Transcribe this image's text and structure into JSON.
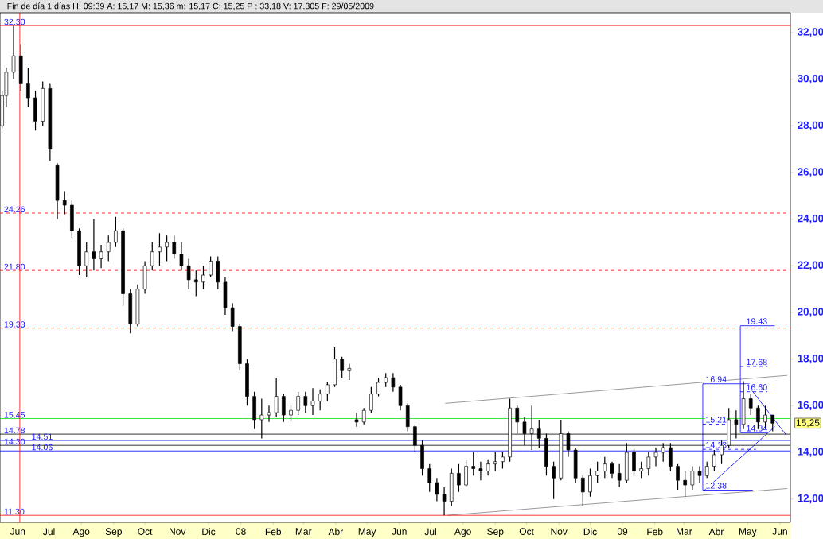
{
  "chart_data": {
    "type": "candlestick",
    "title": "Fin de día 1 días H: 09:39 A: 15,17 M: 15,36 m: 15,17 C: 15,25 P : 33,18 V: 17.305 F: 29/05/2009",
    "color": "#000000",
    "x": [
      "2007-05-17",
      "2007-05-21",
      "2007-05-28",
      "2007-06-04",
      "2007-06-11",
      "2007-06-18",
      "2007-06-25",
      "2007-07-02",
      "2007-07-09",
      "2007-07-16",
      "2007-07-23",
      "2007-07-30",
      "2007-08-06",
      "2007-08-13",
      "2007-08-20",
      "2007-08-27",
      "2007-09-03",
      "2007-09-10",
      "2007-09-17",
      "2007-09-24",
      "2007-10-01",
      "2007-10-08",
      "2007-10-15",
      "2007-10-22",
      "2007-10-29",
      "2007-11-05",
      "2007-11-12",
      "2007-11-19",
      "2007-11-26",
      "2007-12-03",
      "2007-12-10",
      "2007-12-17",
      "2007-12-24",
      "2007-12-31",
      "2008-01-07",
      "2008-01-14",
      "2008-01-21",
      "2008-01-28",
      "2008-02-04",
      "2008-02-11",
      "2008-02-18",
      "2008-02-25",
      "2008-03-03",
      "2008-03-10",
      "2008-03-17",
      "2008-03-24",
      "2008-03-31",
      "2008-04-07",
      "2008-04-14",
      "2008-04-21",
      "2008-04-28",
      "2008-05-05",
      "2008-05-12",
      "2008-05-19",
      "2008-05-26",
      "2008-06-02",
      "2008-06-09",
      "2008-06-16",
      "2008-06-23",
      "2008-06-30",
      "2008-07-07",
      "2008-07-14",
      "2008-07-21",
      "2008-07-28",
      "2008-08-04",
      "2008-08-11",
      "2008-08-18",
      "2008-08-25",
      "2008-09-01",
      "2008-09-08",
      "2008-09-15",
      "2008-09-22",
      "2008-09-29",
      "2008-10-06",
      "2008-10-13",
      "2008-10-20",
      "2008-10-27",
      "2008-11-03",
      "2008-11-10",
      "2008-11-17",
      "2008-11-24",
      "2008-12-01",
      "2008-12-08",
      "2008-12-15",
      "2008-12-22",
      "2008-12-29",
      "2009-01-05",
      "2009-01-12",
      "2009-01-19",
      "2009-01-26",
      "2009-02-02",
      "2009-02-09",
      "2009-02-16",
      "2009-02-23",
      "2009-03-02",
      "2009-03-09",
      "2009-03-16",
      "2009-03-23",
      "2009-03-30",
      "2009-04-06",
      "2009-04-13",
      "2009-04-20",
      "2009-04-27",
      "2009-05-04",
      "2009-05-11",
      "2009-05-18",
      "2009-05-25"
    ],
    "ohlc": [
      [
        28.0,
        29.5,
        27.9,
        29.3
      ],
      [
        29.3,
        30.5,
        28.8,
        30.3
      ],
      [
        30.3,
        32.3,
        30.0,
        31.0
      ],
      [
        31.0,
        31.5,
        29.5,
        29.8
      ],
      [
        29.8,
        30.5,
        28.8,
        29.2
      ],
      [
        29.2,
        29.5,
        27.8,
        28.2
      ],
      [
        28.2,
        29.9,
        28.0,
        29.6
      ],
      [
        29.6,
        29.8,
        26.5,
        27.0
      ],
      [
        26.3,
        26.4,
        24.0,
        24.8
      ],
      [
        24.8,
        25.2,
        24.2,
        24.6
      ],
      [
        24.6,
        24.8,
        23.2,
        23.5
      ],
      [
        23.5,
        23.6,
        21.6,
        22.0
      ],
      [
        22.0,
        23.0,
        21.5,
        22.6
      ],
      [
        22.6,
        24.0,
        21.8,
        22.3
      ],
      [
        22.3,
        22.9,
        21.9,
        22.6
      ],
      [
        22.6,
        23.3,
        22.2,
        23.0
      ],
      [
        23.0,
        24.1,
        22.8,
        23.5
      ],
      [
        23.5,
        23.6,
        20.3,
        20.8
      ],
      [
        20.8,
        21.0,
        19.1,
        19.5
      ],
      [
        19.5,
        21.2,
        19.4,
        21.0
      ],
      [
        21.0,
        22.2,
        20.8,
        22.0
      ],
      [
        22.0,
        23.0,
        21.8,
        22.6
      ],
      [
        22.6,
        23.4,
        22.0,
        22.8
      ],
      [
        22.8,
        23.3,
        22.2,
        23.0
      ],
      [
        23.0,
        23.3,
        22.3,
        22.5
      ],
      [
        22.5,
        23.0,
        21.8,
        22.0
      ],
      [
        22.0,
        22.3,
        21.0,
        21.4
      ],
      [
        21.4,
        21.8,
        20.7,
        21.3
      ],
      [
        21.3,
        22.0,
        21.0,
        21.6
      ],
      [
        21.6,
        22.4,
        21.5,
        22.2
      ],
      [
        22.2,
        22.4,
        21.0,
        21.3
      ],
      [
        21.3,
        21.5,
        19.9,
        20.2
      ],
      [
        20.2,
        20.4,
        19.2,
        19.4
      ],
      [
        19.4,
        19.5,
        17.5,
        17.8
      ],
      [
        17.8,
        18.0,
        16.0,
        16.4
      ],
      [
        16.4,
        16.6,
        15.0,
        15.4
      ],
      [
        15.4,
        16.3,
        14.6,
        15.6
      ],
      [
        15.6,
        16.0,
        15.3,
        15.7
      ],
      [
        15.7,
        17.2,
        15.5,
        16.4
      ],
      [
        16.4,
        16.5,
        15.3,
        15.6
      ],
      [
        15.6,
        16.0,
        15.3,
        15.8
      ],
      [
        15.8,
        16.6,
        15.6,
        16.4
      ],
      [
        16.4,
        16.6,
        15.7,
        16.0
      ],
      [
        16.0,
        16.75,
        15.6,
        16.2
      ],
      [
        16.2,
        16.7,
        15.8,
        16.5
      ],
      [
        16.5,
        17.0,
        16.2,
        16.9
      ],
      [
        16.9,
        18.5,
        16.8,
        18.0
      ],
      [
        18.0,
        18.1,
        17.2,
        17.5
      ],
      [
        17.5,
        17.8,
        17.1,
        17.6
      ],
      [
        15.4,
        15.7,
        15.1,
        15.3
      ],
      [
        15.3,
        15.9,
        15.2,
        15.8
      ],
      [
        15.8,
        16.8,
        15.7,
        16.5
      ],
      [
        16.5,
        17.2,
        16.4,
        17.0
      ],
      [
        17.0,
        17.4,
        16.8,
        17.2
      ],
      [
        17.2,
        17.4,
        16.6,
        16.8
      ],
      [
        16.8,
        16.9,
        15.8,
        16.0
      ],
      [
        16.0,
        16.1,
        14.9,
        15.1
      ],
      [
        15.1,
        15.2,
        14.0,
        14.3
      ],
      [
        14.3,
        14.5,
        13.0,
        13.3
      ],
      [
        13.3,
        13.5,
        12.3,
        12.7
      ],
      [
        12.7,
        12.9,
        11.9,
        12.2
      ],
      [
        12.2,
        12.5,
        11.3,
        11.9
      ],
      [
        11.9,
        13.3,
        11.7,
        13.1
      ],
      [
        13.1,
        13.5,
        12.3,
        12.6
      ],
      [
        12.6,
        13.7,
        12.5,
        13.4
      ],
      [
        13.4,
        14.0,
        13.0,
        13.3
      ],
      [
        13.3,
        13.6,
        12.8,
        13.2
      ],
      [
        13.2,
        13.7,
        13.0,
        13.5
      ],
      [
        13.5,
        14.0,
        13.2,
        13.6
      ],
      [
        13.6,
        14.0,
        13.3,
        13.8
      ],
      [
        13.8,
        16.3,
        13.6,
        15.9
      ],
      [
        15.9,
        16.0,
        14.8,
        15.3
      ],
      [
        15.3,
        15.5,
        14.3,
        14.8
      ],
      [
        14.8,
        16.0,
        14.1,
        15.0
      ],
      [
        15.0,
        15.4,
        14.2,
        14.6
      ],
      [
        14.6,
        14.8,
        13.0,
        13.4
      ],
      [
        13.4,
        13.6,
        12.0,
        12.9
      ],
      [
        12.9,
        15.4,
        12.8,
        14.8
      ],
      [
        14.8,
        14.9,
        13.8,
        14.1
      ],
      [
        14.1,
        14.2,
        12.7,
        12.9
      ],
      [
        12.9,
        13.0,
        11.7,
        12.3
      ],
      [
        12.3,
        13.3,
        12.1,
        13.0
      ],
      [
        13.0,
        13.6,
        12.7,
        13.2
      ],
      [
        13.2,
        13.8,
        12.9,
        13.5
      ],
      [
        13.5,
        13.6,
        12.9,
        13.1
      ],
      [
        13.1,
        13.5,
        12.5,
        12.8
      ],
      [
        12.8,
        14.4,
        12.7,
        14.0
      ],
      [
        14.0,
        14.2,
        13.0,
        13.2
      ],
      [
        13.2,
        13.6,
        12.9,
        13.3
      ],
      [
        13.3,
        14.0,
        13.0,
        13.8
      ],
      [
        13.8,
        14.2,
        13.4,
        14.0
      ],
      [
        14.0,
        14.4,
        13.6,
        14.2
      ],
      [
        14.2,
        14.4,
        13.2,
        13.4
      ],
      [
        13.4,
        13.5,
        12.4,
        12.8
      ],
      [
        12.8,
        13.2,
        12.1,
        12.6
      ],
      [
        12.6,
        13.4,
        12.4,
        13.2
      ],
      [
        13.2,
        13.4,
        12.7,
        13.0
      ],
      [
        13.0,
        13.6,
        12.9,
        13.4
      ],
      [
        13.4,
        14.1,
        13.2,
        13.9
      ],
      [
        13.9,
        14.5,
        13.5,
        14.3
      ],
      [
        14.3,
        15.9,
        14.2,
        15.4
      ],
      [
        15.4,
        15.8,
        14.6,
        15.2
      ],
      [
        15.2,
        17.05,
        15.0,
        16.3
      ],
      [
        16.3,
        16.5,
        15.6,
        15.9
      ],
      [
        15.9,
        16.0,
        15.0,
        15.3
      ],
      [
        15.3,
        16.0,
        15.0,
        15.6
      ],
      [
        15.6,
        15.6,
        14.9,
        15.25
      ]
    ],
    "series": [
      {
        "type": "line",
        "color": "#808080",
        "line_style": "solid",
        "x": [
          "2008-07-15",
          "2009-06-08"
        ],
        "values": [
          16.1,
          17.3
        ]
      },
      {
        "type": "line",
        "color": "#808080",
        "line_style": "solid",
        "x": [
          "2008-07-17",
          "2009-06-08"
        ],
        "values": [
          11.3,
          12.45
        ]
      },
      {
        "type": "line",
        "color": "#0000ff",
        "line_style": "solid",
        "x": [
          "2009-05-06",
          "2009-03-19",
          "2009-03-19",
          "2009-05-03"
        ],
        "values": [
          12.38,
          12.38,
          16.94,
          16.94
        ]
      },
      {
        "type": "line",
        "color": "#0000ff",
        "line_style": "dashed",
        "x": [
          "2009-03-19",
          "2009-04-12"
        ],
        "values": [
          15.21,
          15.21
        ]
      },
      {
        "type": "line",
        "color": "#0000ff",
        "line_style": "dashed",
        "x": [
          "2009-03-19",
          "2009-05-09"
        ],
        "values": [
          14.13,
          14.13
        ]
      },
      {
        "type": "line",
        "color": "#0000ff",
        "line_style": "solid",
        "x": [
          "2009-05-20",
          "2009-04-24",
          "2009-04-24",
          "2009-05-27"
        ],
        "values": [
          14.84,
          14.84,
          19.43,
          19.43
        ]
      },
      {
        "type": "line",
        "color": "#0000ff",
        "line_style": "dashed",
        "x": [
          "2009-04-24",
          "2009-05-20"
        ],
        "values": [
          17.68,
          17.68
        ]
      },
      {
        "type": "line",
        "color": "#0000ff",
        "line_style": "dashed",
        "x": [
          "2009-04-24",
          "2009-05-20"
        ],
        "values": [
          16.6,
          16.6
        ]
      },
      {
        "type": "line",
        "color": "#0000ff",
        "line_style": "solid",
        "x": [
          "2009-04-30",
          "2009-06-07"
        ],
        "values": [
          16.95,
          14.74
        ]
      },
      {
        "type": "line",
        "color": "#0000ff",
        "line_style": "solid",
        "x": [
          "2009-03-20",
          "2009-05-27"
        ],
        "values": [
          12.35,
          15.1
        ]
      }
    ],
    "ref_lines": [
      {
        "axis": "y",
        "value": 32.3,
        "label": "32.30",
        "color": "#ff0000",
        "line_style": "solid"
      },
      {
        "axis": "y",
        "value": 24.26,
        "label": "24.26",
        "color": "#ff0000",
        "line_style": "dashed"
      },
      {
        "axis": "y",
        "value": 21.8,
        "label": "21.80",
        "color": "#ff0000",
        "line_style": "dashed"
      },
      {
        "axis": "y",
        "value": 19.33,
        "label": "19.33",
        "color": "#ff0000",
        "line_style": "dashed"
      },
      {
        "axis": "y",
        "value": 15.45,
        "label": "15.45",
        "color": "#00e000",
        "line_style": "solid"
      },
      {
        "axis": "y",
        "value": 14.78,
        "label": "14.78",
        "color": "#000000",
        "line_style": "solid"
      },
      {
        "axis": "y",
        "value": 14.51,
        "label": "14.51",
        "color": "#0000ff",
        "line_style": "solid"
      },
      {
        "axis": "y",
        "value": 14.3,
        "label": "14.30",
        "color": "#000000",
        "line_style": "solid"
      },
      {
        "axis": "y",
        "value": 14.06,
        "label": "14.06",
        "color": "#0000ff",
        "line_style": "solid"
      },
      {
        "axis": "y",
        "value": 11.3,
        "label": "11.30",
        "color": "#ff0000",
        "line_style": "solid"
      },
      {
        "axis": "x",
        "value": "2007-06-03",
        "color": "#ff0000",
        "line_style": "solid"
      }
    ],
    "annotations": [
      {
        "text": "16.94",
        "x": "2009-03-21",
        "y": 16.94
      },
      {
        "text": "15.21",
        "x": "2009-03-21",
        "y": 15.21
      },
      {
        "text": "14.13",
        "x": "2009-03-21",
        "y": 14.13
      },
      {
        "text": "12.38",
        "x": "2009-03-21",
        "y": 12.38
      },
      {
        "text": "19.43",
        "x": "2009-04-29",
        "y": 19.43
      },
      {
        "text": "17.68",
        "x": "2009-04-29",
        "y": 17.68
      },
      {
        "text": "16.60",
        "x": "2009-04-29",
        "y": 16.6
      },
      {
        "text": "14.84",
        "x": "2009-04-29",
        "y": 14.84
      },
      "15,25"
    ],
    "xlim": [
      "2007-05-15",
      "2009-06-11"
    ],
    "xticks": [
      {
        "value": "2007-06-01",
        "label": "Jun"
      },
      {
        "value": "2007-07-01",
        "label": "Jul"
      },
      {
        "value": "2007-08-01",
        "label": "Ago"
      },
      {
        "value": "2007-09-01",
        "label": "Sep"
      },
      {
        "value": "2007-10-01",
        "label": "Oct"
      },
      {
        "value": "2007-11-01",
        "label": "Nov"
      },
      {
        "value": "2007-12-01",
        "label": "Dic"
      },
      {
        "value": "2008-01-01",
        "label": "08"
      },
      {
        "value": "2008-02-01",
        "label": "Feb"
      },
      {
        "value": "2008-03-01",
        "label": "Mar"
      },
      {
        "value": "2008-04-01",
        "label": "Abr"
      },
      {
        "value": "2008-05-01",
        "label": "May"
      },
      {
        "value": "2008-06-01",
        "label": "Jun"
      },
      {
        "value": "2008-07-01",
        "label": "Jul"
      },
      {
        "value": "2008-08-01",
        "label": "Ago"
      },
      {
        "value": "2008-09-01",
        "label": "Sep"
      },
      {
        "value": "2008-10-01",
        "label": "Oct"
      },
      {
        "value": "2008-11-01",
        "label": "Nov"
      },
      {
        "value": "2008-12-01",
        "label": "Dic"
      },
      {
        "value": "2009-01-01",
        "label": "09"
      },
      {
        "value": "2009-02-01",
        "label": "Feb"
      },
      {
        "value": "2009-03-01",
        "label": "Mar"
      },
      {
        "value": "2009-04-01",
        "label": "Abr"
      },
      {
        "value": "2009-05-01",
        "label": "May"
      },
      {
        "value": "2009-06-01",
        "label": "Jun"
      }
    ],
    "ylim": [
      11.0,
      32.85
    ],
    "yticks": [
      {
        "value": 12,
        "label": "12,00"
      },
      {
        "value": 14,
        "label": "14,00"
      },
      {
        "value": 16,
        "label": "16,00"
      },
      {
        "value": 18,
        "label": "18,00"
      },
      {
        "value": 20,
        "label": "20,00"
      },
      {
        "value": 22,
        "label": "22,00"
      },
      {
        "value": 24,
        "label": "24,00"
      },
      {
        "value": 26,
        "label": "26,00"
      },
      {
        "value": 28,
        "label": "28,00"
      },
      {
        "value": 30,
        "label": "30,00"
      },
      {
        "value": 32,
        "label": "32,00"
      }
    ]
  }
}
